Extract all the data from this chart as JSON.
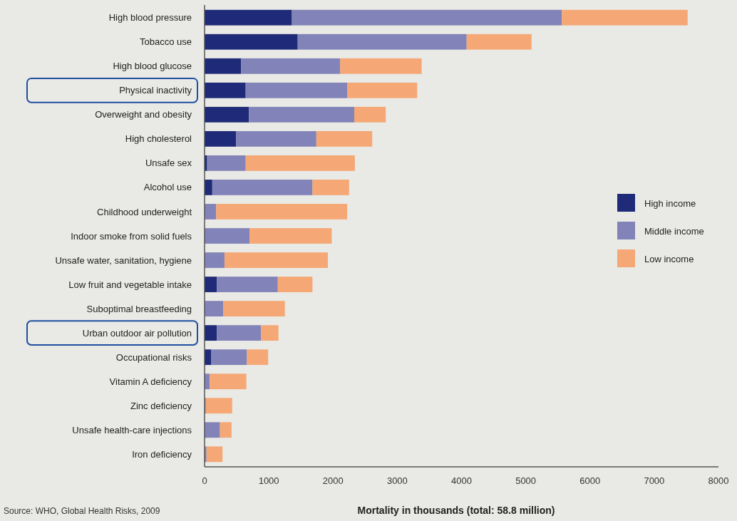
{
  "chart_data": {
    "type": "bar",
    "orientation": "horizontal",
    "stacked": true,
    "categories": [
      "High blood pressure",
      "Tobacco use",
      "High blood glucose",
      "Physical inactivity",
      "Overweight and obesity",
      "High cholesterol",
      "Unsafe sex",
      "Alcohol use",
      "Childhood underweight",
      "Indoor smoke from solid fuels",
      "Unsafe water, sanitation, hygiene",
      "Low fruit and vegetable intake",
      "Suboptimal breastfeeding",
      "Urban outdoor air pollution",
      "Occupational risks",
      "Vitamin A deficiency",
      "Zinc deficiency",
      "Unsafe health-care injections",
      "Iron deficiency"
    ],
    "series": [
      {
        "name": "High income",
        "color": "#1f2a78",
        "values": [
          1360,
          1450,
          570,
          640,
          690,
          490,
          40,
          120,
          0,
          0,
          0,
          190,
          0,
          190,
          100,
          0,
          0,
          0,
          0
        ]
      },
      {
        "name": "Middle income",
        "color": "#8283b8",
        "values": [
          4200,
          2630,
          1540,
          1580,
          1640,
          1250,
          600,
          1560,
          180,
          700,
          310,
          950,
          290,
          690,
          560,
          80,
          20,
          240,
          30
        ]
      },
      {
        "name": "Low income",
        "color": "#f5a875",
        "values": [
          1960,
          1010,
          1270,
          1090,
          490,
          870,
          1700,
          570,
          2040,
          1280,
          1610,
          540,
          960,
          270,
          330,
          570,
          410,
          180,
          250
        ]
      }
    ],
    "xlim": [
      0,
      8000
    ],
    "xticks": [
      0,
      1000,
      2000,
      3000,
      4000,
      5000,
      6000,
      7000,
      8000
    ],
    "xlabel": "Mortality in thousands (total: 58.8 million)",
    "annotations": [
      "Source: WHO, Global Health Risks, 2009"
    ],
    "legend": "right",
    "grid": false
  }
}
